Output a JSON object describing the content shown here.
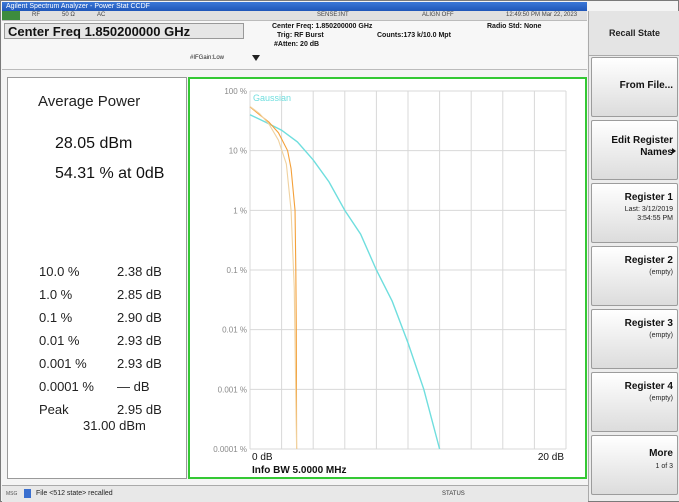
{
  "window": {
    "title": "Agilent Spectrum Analyzer - Power Stat CCDF"
  },
  "header": {
    "center_freq": "Center Freq 1.850200000 GHz",
    "ifgain": "#IFGain:Low",
    "center_freq_small": "Center Freq: 1.850200000 GHz",
    "trig": "Trig: RF Burst",
    "atten": "#Atten: 20 dB",
    "counts": "Counts:173 k/10.0 Mpt",
    "radio_std": "Radio Std: None",
    "timestamp": "12:49:50 PM Mar 22, 2023",
    "sense": "SENSE:INT",
    "align": "ALIGN OFF",
    "ruler_labels": [
      "RF",
      "50 Ω",
      "AC"
    ]
  },
  "results": {
    "title": "Average Power",
    "avg_dbm": "28.05 dBm",
    "avg_pct": "54.31 % at 0dB",
    "rows": [
      {
        "pct": "10.0 %",
        "val": "2.38 dB"
      },
      {
        "pct": "1.0 %",
        "val": "2.85 dB"
      },
      {
        "pct": "0.1 %",
        "val": "2.90 dB"
      },
      {
        "pct": "0.01 %",
        "val": "2.93 dB"
      },
      {
        "pct": "0.001 %",
        "val": "2.93 dB"
      },
      {
        "pct": "0.0001 %",
        "val": "— dB"
      },
      {
        "pct": "Peak",
        "val": "2.95 dB"
      }
    ],
    "peak_dbm": "31.00 dBm"
  },
  "chart_data": {
    "type": "line",
    "ylabels": [
      "100 %",
      "10 %",
      "1 %",
      "0.1 %",
      "0.01 %",
      "0.001 %",
      "0.0001 %"
    ],
    "xlabel_left": "0 dB",
    "xlabel_right": "20 dB",
    "xrange": [
      0,
      20
    ],
    "yscale": "log",
    "ylim": [
      0.0001,
      100
    ],
    "bandwidth": "Info BW 5.0000 MHz",
    "gaussian_label": "Gaussian",
    "grid": true,
    "series": [
      {
        "name": "Gaussian",
        "color": "#6fdede",
        "x": [
          0,
          1,
          2,
          3,
          4,
          5,
          6,
          7,
          8,
          9,
          10,
          11,
          12
        ],
        "y": [
          40,
          30,
          22,
          14,
          7,
          3,
          1,
          0.4,
          0.1,
          0.03,
          0.006,
          0.001,
          0.0001
        ]
      },
      {
        "name": "",
        "color": "#f4a13a",
        "x": [
          0,
          0.6,
          1.2,
          1.8,
          2.38,
          2.6,
          2.85,
          2.9,
          2.93,
          2.95
        ],
        "y": [
          54.31,
          40,
          30,
          20,
          10,
          5,
          1,
          0.1,
          0.01,
          0.0001
        ]
      },
      {
        "name": "",
        "color": "#f0d2a0",
        "x": [
          0,
          0.6,
          1.2,
          1.8,
          2.3,
          2.6,
          2.8,
          2.95
        ],
        "y": [
          55,
          42,
          28,
          15,
          6,
          1,
          0.05,
          0.0001
        ]
      }
    ],
    "colors": {
      "grid": "#d8d8d8",
      "border": "#34c834"
    }
  },
  "menu": {
    "title": "Recall State",
    "items": [
      {
        "label": "From File...",
        "sub": []
      },
      {
        "label": "Edit Register Names",
        "sub": []
      },
      {
        "label": "Register 1",
        "sub": [
          "Last: 3/12/2019",
          "3:54:55 PM"
        ]
      },
      {
        "label": "Register 2",
        "sub": [
          "(empty)"
        ]
      },
      {
        "label": "Register 3",
        "sub": [
          "(empty)"
        ]
      },
      {
        "label": "Register 4",
        "sub": [
          "(empty)"
        ]
      },
      {
        "label": "More",
        "sub": [
          "1 of 3"
        ]
      }
    ]
  },
  "status": {
    "message": "File <512 state> recalled",
    "label": "STATUS",
    "msg_tag": "MSG"
  }
}
